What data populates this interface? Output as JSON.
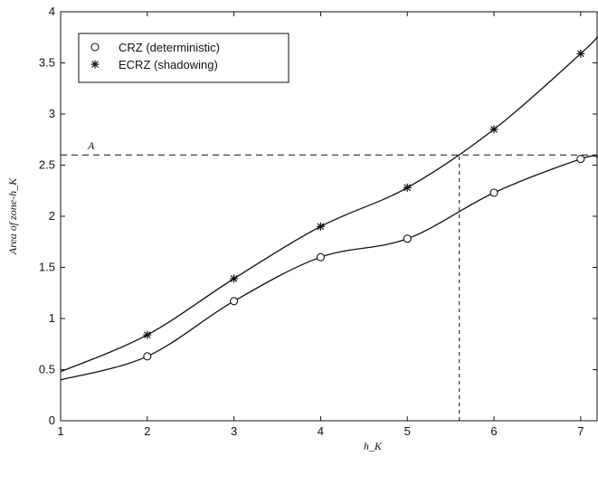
{
  "chart_data": {
    "type": "line",
    "title": "",
    "xlabel": "h_K",
    "ylabel": "Area of zone-h_K",
    "xlim": [
      1,
      7.2
    ],
    "ylim": [
      0,
      4
    ],
    "x_ticks": [
      "1",
      "2",
      "3",
      "4",
      "5",
      "6",
      "7"
    ],
    "y_ticks": [
      "0",
      "0.5",
      "1",
      "1.5",
      "2",
      "2.5",
      "3",
      "3.5",
      "4"
    ],
    "grid": false,
    "legend_position": "top-left",
    "series": [
      {
        "name": "CRZ (deterministic)",
        "marker": "circle",
        "x": [
          2,
          3,
          4,
          5,
          6,
          7
        ],
        "y": [
          0.63,
          1.17,
          1.6,
          1.78,
          2.23,
          2.56
        ],
        "curve_x": [
          1,
          2,
          3,
          4,
          5,
          6,
          7,
          7.2
        ],
        "curve_y": [
          0.4,
          0.63,
          1.17,
          1.6,
          1.78,
          2.23,
          2.56,
          2.58
        ]
      },
      {
        "name": "ECRZ (shadowing)",
        "marker": "star",
        "x": [
          2,
          3,
          4,
          5,
          6,
          7
        ],
        "y": [
          0.84,
          1.39,
          1.9,
          2.28,
          2.85,
          3.59
        ],
        "curve_x": [
          1,
          2,
          3,
          4,
          5,
          6,
          7,
          7.2
        ],
        "curve_y": [
          0.48,
          0.84,
          1.39,
          1.9,
          2.28,
          2.85,
          3.59,
          3.76
        ]
      }
    ],
    "reference_lines": [
      {
        "orientation": "horizontal",
        "y": 2.6,
        "style": "dashed",
        "label": "A_c"
      },
      {
        "orientation": "vertical",
        "x": 5.6,
        "y_from": 0,
        "y_to": 2.6,
        "style": "dashed"
      }
    ],
    "annotation_label": "A"
  }
}
